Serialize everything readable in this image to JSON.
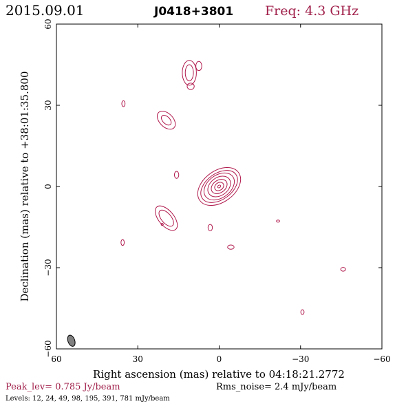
{
  "header": {
    "date": "2015.09.01",
    "source": "J0418+3801",
    "freq": "Freq: 4.3 GHz"
  },
  "footer": {
    "peak": "Peak_lev=  0.785 Jy/beam",
    "noise": "Rms_noise=   2.4 mJy/beam",
    "levels": "Levels:  12,  24,  49,  98, 195, 391, 781 mJy/beam"
  },
  "colors": {
    "contour": "#b0184c",
    "accent": "#a0204a",
    "beam": "#808080"
  },
  "chart_data": {
    "type": "contour",
    "xlabel": "Right ascension (mas) relative to 04:18:21.2772",
    "ylabel": "Declination (mas) relative to +38:01:35.800",
    "xlim": [
      60,
      -60
    ],
    "ylim": [
      -60,
      60
    ],
    "x_ticks": [
      60,
      30,
      0,
      -30,
      -60
    ],
    "y_ticks": [
      60,
      30,
      0,
      -30,
      -60
    ],
    "x_tick_labels": [
      "60",
      "30",
      "0",
      "−30",
      "−60"
    ],
    "y_tick_labels": [
      "60",
      "30",
      "0",
      "−30",
      "−60"
    ],
    "contour_levels_mJy_per_beam": [
      12,
      24,
      49,
      98,
      195,
      391,
      781
    ],
    "beam": {
      "x": 54.5,
      "y": -57,
      "major_mas": 4.3,
      "minor_mas": 2.5,
      "pa_deg": 160
    },
    "components": [
      {
        "name": "core",
        "x": 0,
        "y": 0,
        "contours": [
          {
            "dx": 8.8,
            "dy": 5.8,
            "pa": 36
          },
          {
            "dx": 7.6,
            "dy": 4.8,
            "pa": 36
          },
          {
            "dx": 6.2,
            "dy": 4.2,
            "pa": 36
          },
          {
            "dx": 4.6,
            "dy": 3.3,
            "pa": 36
          },
          {
            "dx": 3.2,
            "dy": 2.3,
            "pa": 36
          },
          {
            "dx": 1.8,
            "dy": 1.4,
            "pa": 36
          },
          {
            "dx": 0.6,
            "dy": 0.45,
            "pa": 36
          }
        ]
      },
      {
        "name": "knot-south",
        "x": 19.5,
        "y": -11.7,
        "contours": [
          {
            "dx": 5.4,
            "dy": 2.8,
            "pa": -50
          },
          {
            "dx": 3.6,
            "dy": 1.8,
            "pa": -50
          }
        ]
      },
      {
        "name": "knot-north",
        "x": 19.5,
        "y": 24.5,
        "contours": [
          {
            "dx": 4.0,
            "dy": 2.5,
            "pa": -45
          },
          {
            "dx": 2.2,
            "dy": 1.3,
            "pa": -45
          }
        ]
      },
      {
        "name": "knot-top",
        "x": 11.0,
        "y": 42.0,
        "contours": [
          {
            "dx": 2.6,
            "dy": 4.6,
            "pa": 0
          },
          {
            "dx": 1.5,
            "dy": 3.0,
            "pa": 0
          }
        ]
      },
      {
        "name": "blob-1",
        "x": 7.5,
        "y": 44.5,
        "contours": [
          {
            "dx": 1.1,
            "dy": 1.7,
            "pa": 0
          }
        ]
      },
      {
        "name": "blob-2",
        "x": 10.5,
        "y": 37.0,
        "contours": [
          {
            "dx": 1.3,
            "dy": 1.2,
            "pa": 0
          }
        ]
      },
      {
        "name": "blob-3",
        "x": 35.3,
        "y": 30.6,
        "contours": [
          {
            "dx": 0.6,
            "dy": 1.1,
            "pa": 0
          }
        ]
      },
      {
        "name": "blob-4",
        "x": 15.7,
        "y": 4.3,
        "contours": [
          {
            "dx": 0.8,
            "dy": 1.3,
            "pa": 0
          }
        ]
      },
      {
        "name": "blob-5",
        "x": 21.0,
        "y": -14.0,
        "contours": [
          {
            "dx": 0.4,
            "dy": 0.4,
            "pa": 0
          }
        ]
      },
      {
        "name": "blob-6",
        "x": 35.6,
        "y": -20.7,
        "contours": [
          {
            "dx": 0.6,
            "dy": 1.1,
            "pa": 0
          }
        ]
      },
      {
        "name": "blob-7",
        "x": 3.3,
        "y": -15.2,
        "contours": [
          {
            "dx": 0.8,
            "dy": 1.2,
            "pa": 0
          }
        ]
      },
      {
        "name": "blob-8",
        "x": -4.3,
        "y": -22.4,
        "contours": [
          {
            "dx": 1.2,
            "dy": 0.8,
            "pa": 0
          }
        ]
      },
      {
        "name": "blob-9",
        "x": -21.7,
        "y": -12.8,
        "contours": [
          {
            "dx": 0.6,
            "dy": 0.4,
            "pa": 0
          }
        ]
      },
      {
        "name": "blob-10",
        "x": -45.7,
        "y": -30.6,
        "contours": [
          {
            "dx": 0.9,
            "dy": 0.7,
            "pa": 0
          }
        ]
      },
      {
        "name": "blob-11",
        "x": -30.7,
        "y": -46.4,
        "contours": [
          {
            "dx": 0.6,
            "dy": 0.9,
            "pa": 0
          }
        ]
      }
    ]
  }
}
